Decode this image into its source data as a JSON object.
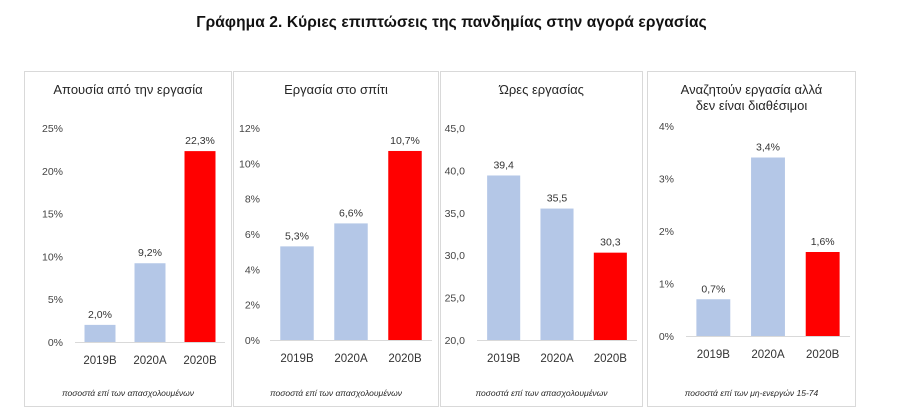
{
  "title": "Γράφημα 2. Κύριες επιπτώσεις της πανδημίας στην αγορά εργασίας",
  "colors": {
    "bar_blue": "#b4c7e7",
    "bar_red": "#ff0000",
    "grid": "#d9d9d9"
  },
  "chart_data": [
    {
      "type": "bar",
      "title": "Απουσία από την εργασία",
      "categories": [
        "2019B",
        "2020A",
        "2020B"
      ],
      "values": [
        2.0,
        9.2,
        22.3
      ],
      "value_labels": [
        "2,0%",
        "9,2%",
        "22,3%"
      ],
      "ylim": [
        0,
        25
      ],
      "yticks": [
        0,
        5,
        10,
        15,
        20,
        25
      ],
      "ytick_labels": [
        "0%",
        "5%",
        "10%",
        "15%",
        "20%",
        "25%"
      ],
      "highlight_index": 2,
      "footnote": "ποσοστά επί των  απασχολουμένων"
    },
    {
      "type": "bar",
      "title": "Εργασία στο σπίτι",
      "categories": [
        "2019B",
        "2020A",
        "2020B"
      ],
      "values": [
        5.3,
        6.6,
        10.7
      ],
      "value_labels": [
        "5,3%",
        "6,6%",
        "10,7%"
      ],
      "ylim": [
        0,
        12
      ],
      "yticks": [
        0,
        2,
        4,
        6,
        8,
        10,
        12
      ],
      "ytick_labels": [
        "0%",
        "2%",
        "4%",
        "6%",
        "8%",
        "10%",
        "12%"
      ],
      "highlight_index": 2,
      "footnote": "ποσοστά επί των απασχολουμένων"
    },
    {
      "type": "bar",
      "title": "Ώρες εργασίας",
      "categories": [
        "2019B",
        "2020A",
        "2020B"
      ],
      "values": [
        39.4,
        35.5,
        30.3
      ],
      "value_labels": [
        "39,4",
        "35,5",
        "30,3"
      ],
      "ylim": [
        20,
        45
      ],
      "yticks": [
        20,
        25,
        30,
        35,
        40,
        45
      ],
      "ytick_labels": [
        "20,0",
        "25,0",
        "30,0",
        "35,0",
        "40,0",
        "45,0"
      ],
      "highlight_index": 2,
      "footnote": "ποσοστά επί των απασχολουμένων"
    },
    {
      "type": "bar",
      "title": "Αναζητούν εργασία αλλά δεν είναι διαθέσιμοι",
      "title_lines": [
        "Αναζητούν εργασία αλλά",
        "δεν είναι διαθέσιμοι"
      ],
      "categories": [
        "2019B",
        "2020A",
        "2020B"
      ],
      "values": [
        0.7,
        3.4,
        1.6
      ],
      "value_labels": [
        "0,7%",
        "3,4%",
        "1,6%"
      ],
      "ylim": [
        0,
        4
      ],
      "yticks": [
        0,
        1,
        2,
        3,
        4
      ],
      "ytick_labels": [
        "0%",
        "1%",
        "2%",
        "3%",
        "4%"
      ],
      "highlight_index": 2,
      "footnote": "ποσοστά επί των μη-ενεργών 15-74"
    }
  ]
}
